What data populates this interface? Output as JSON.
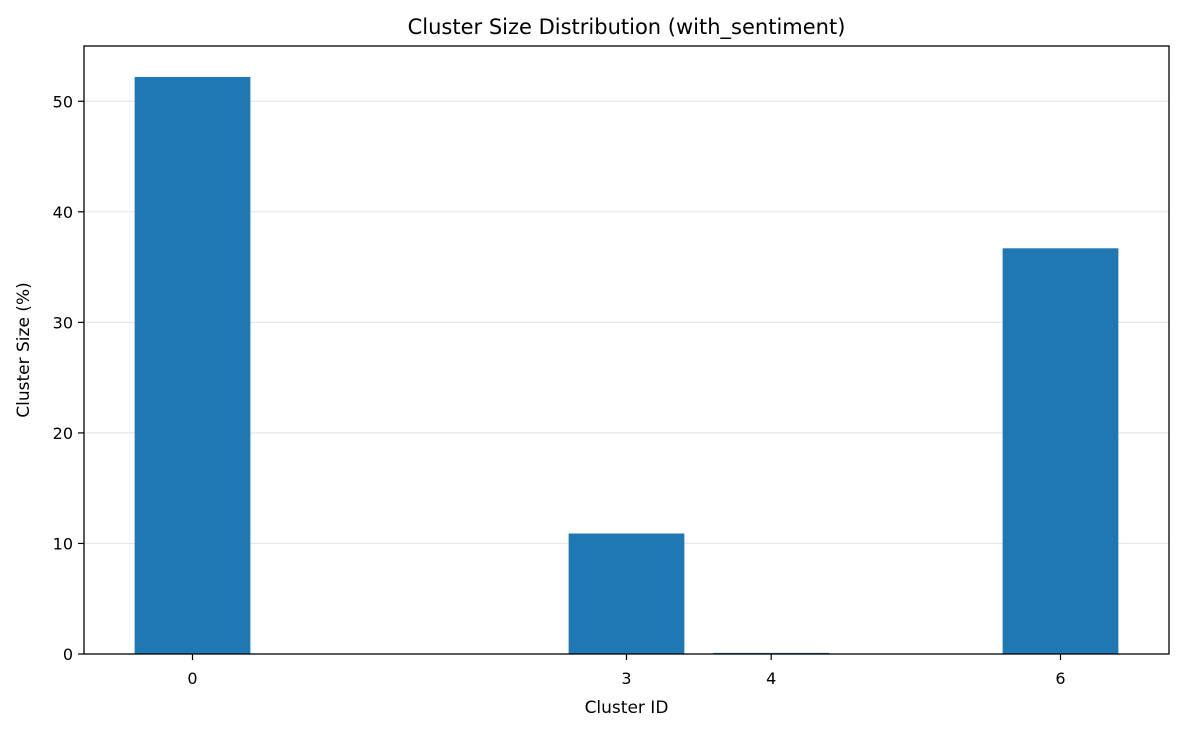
{
  "chart_data": {
    "type": "bar",
    "title": "Cluster Size Distribution (with_sentiment)",
    "xlabel": "Cluster ID",
    "ylabel": "Cluster Size (%)",
    "x": [
      0,
      3,
      4,
      6
    ],
    "values": [
      52.2,
      10.9,
      0.1,
      36.7
    ],
    "xticks": [
      "0",
      "3",
      "4",
      "6"
    ],
    "yticks": [
      0,
      10,
      20,
      30,
      40,
      50
    ],
    "xlim": [
      -0.75,
      6.75
    ],
    "ylim": [
      0,
      55
    ],
    "bar_color": "#1f77b4",
    "grid": "horizontal",
    "legend": "none"
  }
}
